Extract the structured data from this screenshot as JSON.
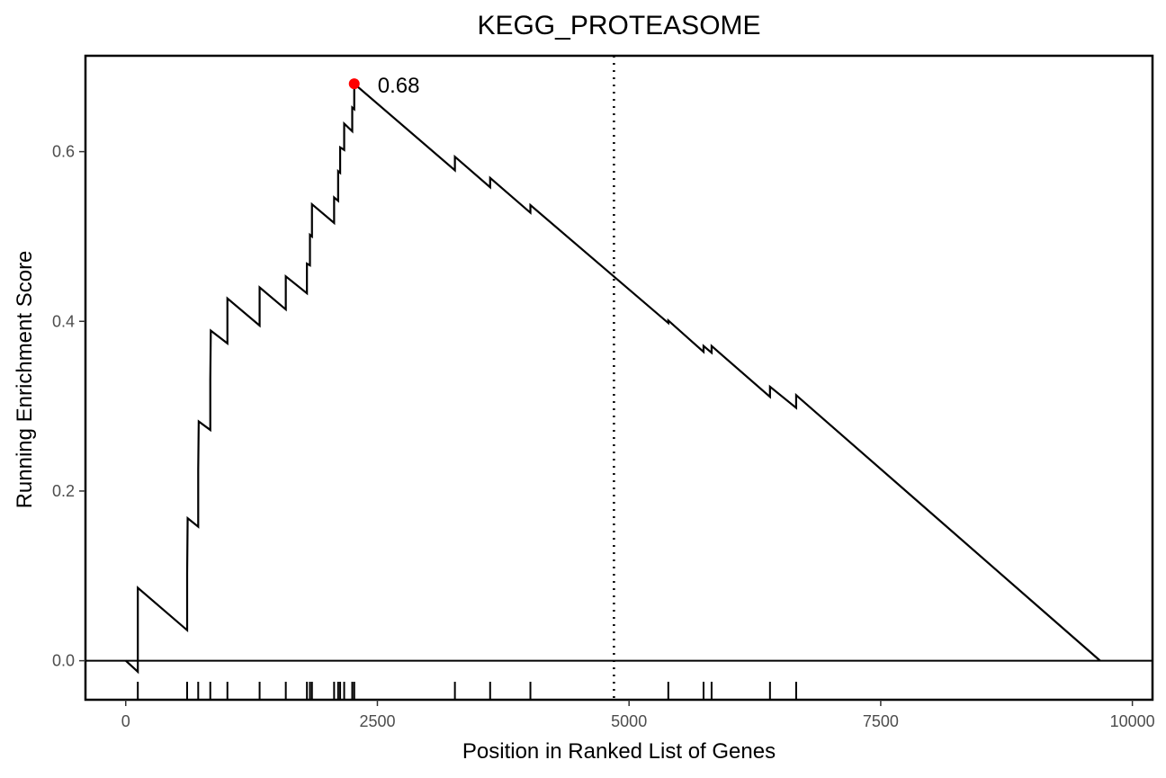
{
  "chart_data": {
    "type": "line",
    "title": "KEGG_PROTEASOME",
    "xlabel": "Position in Ranked List of Genes",
    "ylabel": "Running Enrichment Score",
    "xlim": [
      -400,
      10200
    ],
    "ylim": [
      -0.046,
      0.713
    ],
    "x_ticks": [
      0,
      2500,
      5000,
      7500,
      10000
    ],
    "x_tick_labels": [
      "0",
      "2500",
      "5000",
      "7500",
      "10000"
    ],
    "y_ticks": [
      0.0,
      0.2,
      0.4,
      0.6
    ],
    "y_tick_labels": [
      "0.0",
      "0.2",
      "0.4",
      "0.6"
    ],
    "grid": false,
    "zero_line": 0.0,
    "leading_edge_position": 4850,
    "peak": {
      "x": 2270,
      "y": 0.68,
      "label": "0.68",
      "color": "#ff0000"
    },
    "hit_positions": [
      120,
      610,
      720,
      840,
      1010,
      1330,
      1590,
      1800,
      1830,
      1850,
      2070,
      2110,
      2130,
      2170,
      2250,
      2270,
      3270,
      3620,
      4020,
      5390,
      5740,
      5820,
      6400,
      6660
    ],
    "series": [
      {
        "values": [
          [
            0,
            0.0
          ],
          [
            120,
            -0.013
          ],
          [
            120,
            0.086
          ],
          [
            610,
            0.036
          ],
          [
            610,
            0.103
          ],
          [
            615,
            0.168
          ],
          [
            720,
            0.158
          ],
          [
            720,
            0.225
          ],
          [
            725,
            0.282
          ],
          [
            840,
            0.272
          ],
          [
            840,
            0.332
          ],
          [
            845,
            0.389
          ],
          [
            1010,
            0.374
          ],
          [
            1010,
            0.427
          ],
          [
            1330,
            0.395
          ],
          [
            1330,
            0.44
          ],
          [
            1590,
            0.414
          ],
          [
            1590,
            0.453
          ],
          [
            1800,
            0.433
          ],
          [
            1800,
            0.468
          ],
          [
            1830,
            0.466
          ],
          [
            1830,
            0.502
          ],
          [
            1850,
            0.5
          ],
          [
            1850,
            0.538
          ],
          [
            2070,
            0.516
          ],
          [
            2070,
            0.546
          ],
          [
            2110,
            0.542
          ],
          [
            2110,
            0.577
          ],
          [
            2130,
            0.575
          ],
          [
            2130,
            0.605
          ],
          [
            2170,
            0.602
          ],
          [
            2170,
            0.633
          ],
          [
            2250,
            0.624
          ],
          [
            2250,
            0.652
          ],
          [
            2270,
            0.65
          ],
          [
            2270,
            0.68
          ],
          [
            3270,
            0.578
          ],
          [
            3270,
            0.594
          ],
          [
            3620,
            0.558
          ],
          [
            3620,
            0.569
          ],
          [
            4020,
            0.528
          ],
          [
            4020,
            0.537
          ],
          [
            5390,
            0.398
          ],
          [
            5390,
            0.401
          ],
          [
            5740,
            0.364
          ],
          [
            5740,
            0.371
          ],
          [
            5820,
            0.363
          ],
          [
            5820,
            0.371
          ],
          [
            6400,
            0.311
          ],
          [
            6400,
            0.323
          ],
          [
            6660,
            0.298
          ],
          [
            6660,
            0.313
          ],
          [
            9680,
            0.0
          ]
        ]
      }
    ],
    "line_color": "#000000"
  }
}
